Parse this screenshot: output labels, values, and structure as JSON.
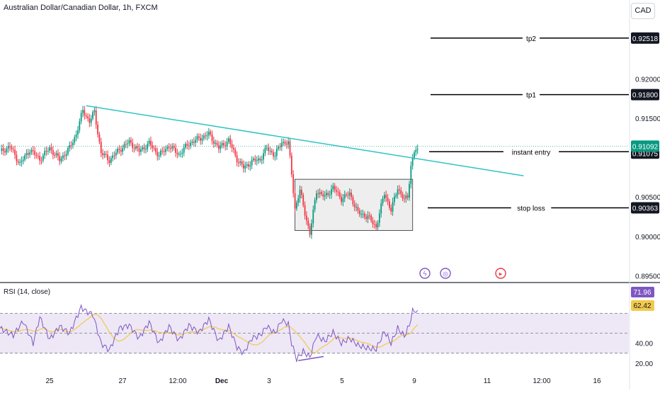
{
  "title": "Australian Dollar/Canadian Dollar, 1h, FXCM",
  "currency_button": "CAD",
  "colors": {
    "up": "#089981",
    "down": "#f23645",
    "trendline": "#2ec4c4",
    "rsi_line": "#7e57c2",
    "rsi_ma": "#f2c94c",
    "rsi_band": "#ede7f6",
    "box_fill": "#eeeeee",
    "box_border": "#555555",
    "price_badge": "#089981"
  },
  "x_ticks": [
    "25",
    "27",
    "12:00",
    "Dec",
    "3",
    "5",
    "9",
    "11",
    "12:00",
    "16"
  ],
  "price_axis_ticks": [
    "0.92000",
    "0.91500",
    "0.90500",
    "0.90000",
    "0.89500"
  ],
  "price_levels": [
    {
      "label": "tp2",
      "value": "0.92518"
    },
    {
      "label": "tp1",
      "value": "0.91800"
    },
    {
      "label": "instant entry",
      "value": "0.91075"
    },
    {
      "label": "stop loss",
      "value": "0.90363"
    }
  ],
  "current_price": "0.91092",
  "rsi_title": "RSI (14, close)",
  "rsi_axis_ticks": [
    "40.00",
    "20.00"
  ],
  "rsi_value": "71.96",
  "rsi_ma_value": "62.42",
  "event_icons": [
    "lightning-icon",
    "news-icon",
    "flag-icon"
  ],
  "chart_data": {
    "type": "candlestick",
    "ylim": [
      0.8945,
      0.9275
    ],
    "keypoints": [
      {
        "x": 0,
        "y": 0.9107
      },
      {
        "x": 6,
        "y": 0.9114
      },
      {
        "x": 12,
        "y": 0.9092
      },
      {
        "x": 18,
        "y": 0.911
      },
      {
        "x": 24,
        "y": 0.9098
      },
      {
        "x": 30,
        "y": 0.9112
      },
      {
        "x": 36,
        "y": 0.9097
      },
      {
        "x": 42,
        "y": 0.9112
      },
      {
        "x": 46,
        "y": 0.913
      },
      {
        "x": 50,
        "y": 0.916
      },
      {
        "x": 54,
        "y": 0.9146
      },
      {
        "x": 57,
        "y": 0.9158
      },
      {
        "x": 61,
        "y": 0.9106
      },
      {
        "x": 66,
        "y": 0.9097
      },
      {
        "x": 72,
        "y": 0.911
      },
      {
        "x": 78,
        "y": 0.912
      },
      {
        "x": 84,
        "y": 0.9108
      },
      {
        "x": 90,
        "y": 0.9118
      },
      {
        "x": 96,
        "y": 0.9103
      },
      {
        "x": 102,
        "y": 0.9115
      },
      {
        "x": 108,
        "y": 0.9104
      },
      {
        "x": 114,
        "y": 0.9118
      },
      {
        "x": 120,
        "y": 0.9124
      },
      {
        "x": 126,
        "y": 0.913
      },
      {
        "x": 132,
        "y": 0.9112
      },
      {
        "x": 138,
        "y": 0.9122
      },
      {
        "x": 143,
        "y": 0.9098
      },
      {
        "x": 147,
        "y": 0.9087
      },
      {
        "x": 152,
        "y": 0.9095
      },
      {
        "x": 157,
        "y": 0.9098
      },
      {
        "x": 161,
        "y": 0.9112
      },
      {
        "x": 166,
        "y": 0.9103
      },
      {
        "x": 170,
        "y": 0.912
      },
      {
        "x": 174,
        "y": 0.9118
      },
      {
        "x": 176,
        "y": 0.908
      },
      {
        "x": 178,
        "y": 0.9035
      },
      {
        "x": 181,
        "y": 0.9058
      },
      {
        "x": 184,
        "y": 0.903
      },
      {
        "x": 187,
        "y": 0.9003
      },
      {
        "x": 191,
        "y": 0.9058
      },
      {
        "x": 196,
        "y": 0.905
      },
      {
        "x": 201,
        "y": 0.9062
      },
      {
        "x": 206,
        "y": 0.9048
      },
      {
        "x": 211,
        "y": 0.9054
      },
      {
        "x": 216,
        "y": 0.903
      },
      {
        "x": 222,
        "y": 0.9025
      },
      {
        "x": 227,
        "y": 0.9012
      },
      {
        "x": 232,
        "y": 0.9055
      },
      {
        "x": 236,
        "y": 0.9033
      },
      {
        "x": 240,
        "y": 0.9062
      },
      {
        "x": 244,
        "y": 0.9046
      },
      {
        "x": 246,
        "y": 0.905
      },
      {
        "x": 248,
        "y": 0.909
      },
      {
        "x": 250,
        "y": 0.9108
      },
      {
        "x": 252,
        "y": 0.9111
      }
    ],
    "trendline": [
      {
        "x": 52,
        "y": 0.9166
      },
      {
        "x": 316,
        "y": 0.9077
      }
    ],
    "consolidation_box": {
      "x0": 178,
      "x1": 249,
      "y0": 0.90075,
      "y1": 0.90725
    },
    "levels": [
      0.92518,
      0.918,
      0.91075,
      0.90363
    ],
    "rsi": {
      "ylim": [
        15,
        100
      ],
      "upper_band": 70,
      "lower_band": 30,
      "mid": 50,
      "keypoints": [
        {
          "x": 0,
          "y": 55
        },
        {
          "x": 8,
          "y": 48
        },
        {
          "x": 14,
          "y": 62
        },
        {
          "x": 20,
          "y": 40
        },
        {
          "x": 24,
          "y": 66
        },
        {
          "x": 30,
          "y": 44
        },
        {
          "x": 36,
          "y": 57
        },
        {
          "x": 42,
          "y": 50
        },
        {
          "x": 46,
          "y": 65
        },
        {
          "x": 49,
          "y": 76
        },
        {
          "x": 52,
          "y": 72
        },
        {
          "x": 56,
          "y": 69
        },
        {
          "x": 61,
          "y": 40
        },
        {
          "x": 66,
          "y": 33
        },
        {
          "x": 72,
          "y": 55
        },
        {
          "x": 78,
          "y": 58
        },
        {
          "x": 84,
          "y": 45
        },
        {
          "x": 90,
          "y": 61
        },
        {
          "x": 96,
          "y": 40
        },
        {
          "x": 102,
          "y": 57
        },
        {
          "x": 108,
          "y": 43
        },
        {
          "x": 114,
          "y": 58
        },
        {
          "x": 120,
          "y": 51
        },
        {
          "x": 126,
          "y": 64
        },
        {
          "x": 132,
          "y": 42
        },
        {
          "x": 138,
          "y": 57
        },
        {
          "x": 143,
          "y": 36
        },
        {
          "x": 147,
          "y": 30
        },
        {
          "x": 152,
          "y": 45
        },
        {
          "x": 157,
          "y": 48
        },
        {
          "x": 161,
          "y": 57
        },
        {
          "x": 166,
          "y": 50
        },
        {
          "x": 170,
          "y": 63
        },
        {
          "x": 174,
          "y": 59
        },
        {
          "x": 176,
          "y": 40
        },
        {
          "x": 179,
          "y": 24
        },
        {
          "x": 183,
          "y": 32
        },
        {
          "x": 187,
          "y": 26
        },
        {
          "x": 191,
          "y": 48
        },
        {
          "x": 196,
          "y": 42
        },
        {
          "x": 201,
          "y": 51
        },
        {
          "x": 206,
          "y": 40
        },
        {
          "x": 211,
          "y": 45
        },
        {
          "x": 216,
          "y": 38
        },
        {
          "x": 222,
          "y": 35
        },
        {
          "x": 227,
          "y": 34
        },
        {
          "x": 232,
          "y": 52
        },
        {
          "x": 236,
          "y": 40
        },
        {
          "x": 240,
          "y": 55
        },
        {
          "x": 244,
          "y": 47
        },
        {
          "x": 247,
          "y": 58
        },
        {
          "x": 249,
          "y": 72
        },
        {
          "x": 252,
          "y": 73
        }
      ],
      "divergence_line": [
        {
          "x": 180,
          "y": 24
        },
        {
          "x": 191,
          "y": 26
        }
      ]
    }
  }
}
